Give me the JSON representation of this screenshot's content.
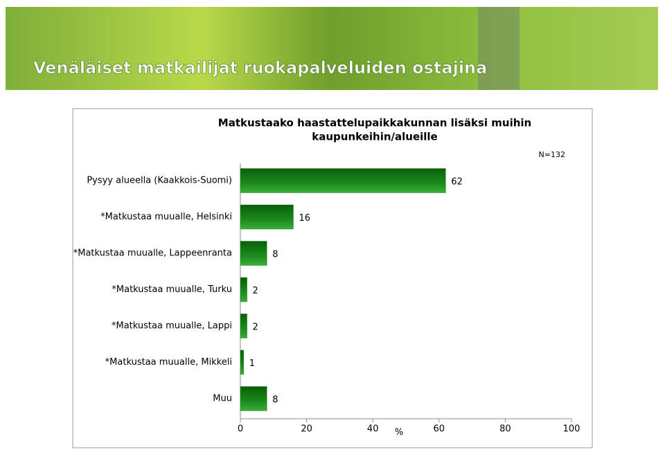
{
  "header": {
    "title": "Venäläiset matkailijat ruokapalveluiden ostajina"
  },
  "chart_data": {
    "type": "bar",
    "title": [
      "Matkustaako haastattelupaikkakunnan lisäksi muihin",
      "kaupunkeihin/alueille"
    ],
    "annotation": "N=132",
    "categories": [
      "Pysyy alueella (Kaakkois-Suomi)",
      "*Matkustaa muualle, Helsinki",
      "*Matkustaa muualle, Lappeenranta",
      "*Matkustaa muualle, Turku",
      "*Matkustaa muualle, Lappi",
      "*Matkustaa muualle, Mikkeli",
      "Muu"
    ],
    "values": [
      62,
      16,
      8,
      2,
      2,
      1,
      8
    ],
    "color": "#1a8a1a",
    "xlim": [
      0,
      100
    ],
    "xticks": [
      0,
      20,
      40,
      60,
      80,
      100
    ],
    "xlabel": "%"
  }
}
